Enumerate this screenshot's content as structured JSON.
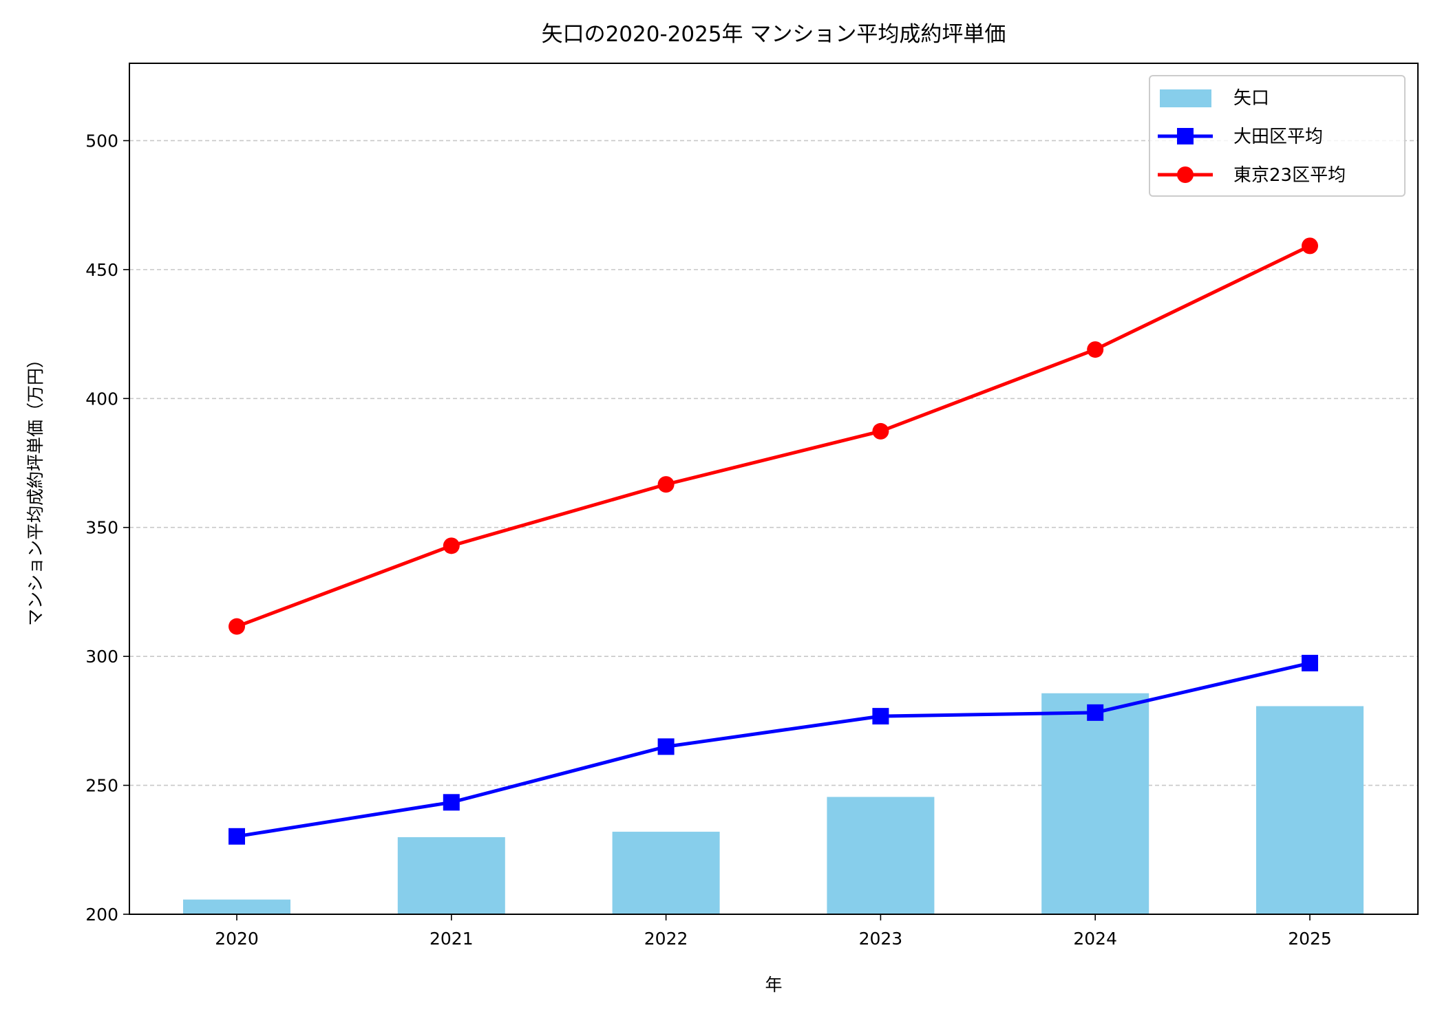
{
  "chart_data": {
    "type": "bar+line",
    "title": "矢口の2020-2025年 マンション平均成約坪単価",
    "xlabel": "年",
    "ylabel": "マンション平均成約坪単価（万円）",
    "categories": [
      "2020",
      "2021",
      "2022",
      "2023",
      "2024",
      "2025"
    ],
    "ylim": [
      200,
      530
    ],
    "yticks": [
      200,
      250,
      300,
      350,
      400,
      450,
      500
    ],
    "grid": "y-dashed",
    "legend_position": "top-right",
    "series": [
      {
        "name": "矢口",
        "kind": "bar",
        "color": "#87CEEB",
        "values": [
          205.7,
          229.9,
          232.0,
          245.5,
          285.7,
          280.7
        ]
      },
      {
        "name": "大田区平均",
        "kind": "line",
        "marker": "square",
        "color": "#0000FF",
        "values": [
          230.2,
          243.4,
          265.0,
          276.8,
          278.2,
          297.4
        ]
      },
      {
        "name": "東京23区平均",
        "kind": "line",
        "marker": "circle",
        "color": "#FF0000",
        "values": [
          311.6,
          342.9,
          366.7,
          387.3,
          419.0,
          459.2
        ]
      }
    ]
  }
}
